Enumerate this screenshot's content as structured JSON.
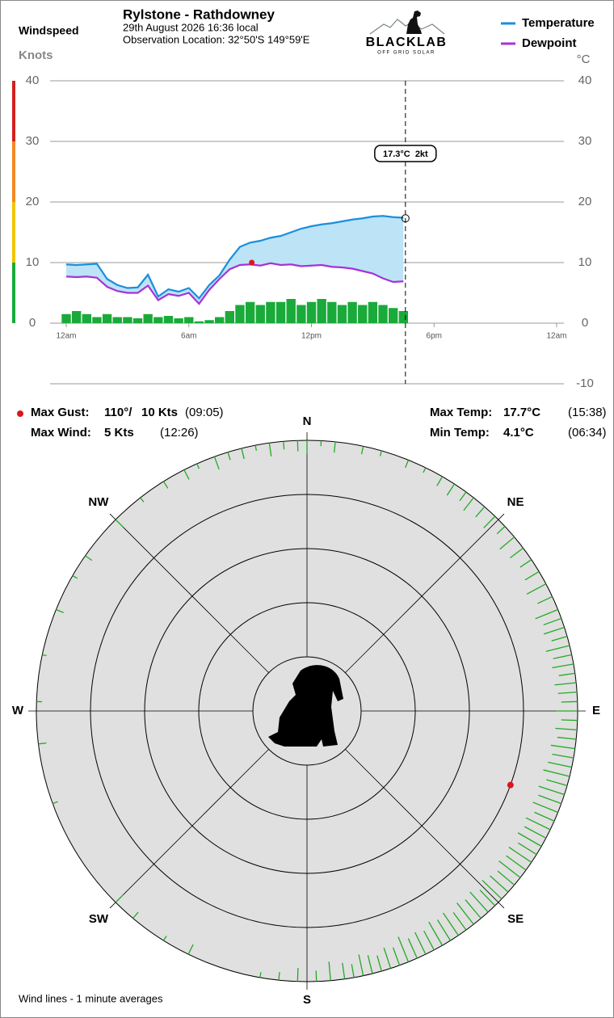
{
  "header": {
    "title": "Rylstone - Rathdowney",
    "date": "29th August 2026  16:36 local",
    "location": "Observation Location: 32°50'S 149°59'E"
  },
  "logo": {
    "name": "BLACKLAB",
    "tagline": "OFF GRID SOLAR"
  },
  "chart_data": [
    {
      "type": "line",
      "y_axis_label": "Windspeed",
      "y_axis_unit": "Knots",
      "y2_axis_label": "°C",
      "x": [
        0,
        0.5,
        1,
        1.5,
        2,
        2.5,
        3,
        3.5,
        4,
        4.5,
        5,
        5.5,
        6,
        6.5,
        7,
        7.5,
        8,
        8.5,
        9,
        9.5,
        10,
        10.5,
        11,
        11.5,
        12,
        12.5,
        13,
        13.5,
        14,
        14.5,
        15,
        15.5,
        16,
        16.5
      ],
      "xlim": [
        0,
        24
      ],
      "xticks": [
        {
          "value": 0,
          "label": "12am"
        },
        {
          "value": 6,
          "label": "6am"
        },
        {
          "value": 12,
          "label": "12pm"
        },
        {
          "value": 18,
          "label": "6pm"
        },
        {
          "value": 24,
          "label": "12am"
        }
      ],
      "ylim": [
        0,
        40
      ],
      "yticks": [
        0,
        10,
        20,
        30,
        40
      ],
      "y2lim": [
        -10,
        40
      ],
      "y2ticks": [
        -10,
        0,
        10,
        20,
        30,
        40
      ],
      "grid": true,
      "legend": "top-right",
      "speed_band_colors": [
        "#1aaa3a",
        "#f2c500",
        "#f08a24",
        "#d42020"
      ],
      "fill_color": "#bde3f7",
      "series": [
        {
          "name": "Temperature",
          "color": "#1a8fdc",
          "axis": "y2",
          "values": [
            9.7,
            9.6,
            9.7,
            9.8,
            7.3,
            6.3,
            5.8,
            5.9,
            8.0,
            4.4,
            5.6,
            5.2,
            5.8,
            4.1,
            6.3,
            7.9,
            10.5,
            12.6,
            13.3,
            13.6,
            14.1,
            14.4,
            15.0,
            15.6,
            16.0,
            16.3,
            16.5,
            16.8,
            17.1,
            17.3,
            17.6,
            17.7,
            17.5,
            17.4
          ]
        },
        {
          "name": "Dewpoint",
          "color": "#a533d6",
          "axis": "y2",
          "values": [
            7.7,
            7.6,
            7.7,
            7.5,
            6.0,
            5.3,
            5.0,
            5.0,
            6.2,
            3.8,
            4.8,
            4.5,
            5.0,
            3.2,
            5.5,
            7.3,
            8.9,
            9.6,
            9.7,
            9.5,
            9.9,
            9.6,
            9.7,
            9.4,
            9.5,
            9.6,
            9.3,
            9.2,
            9.0,
            8.6,
            8.2,
            7.4,
            6.8,
            6.9
          ]
        }
      ],
      "wind": {
        "color": "#1aaa3a",
        "values": [
          1.5,
          2,
          1.5,
          1,
          1.5,
          1,
          1,
          0.8,
          1.5,
          1,
          1.2,
          0.8,
          1,
          0.3,
          0.5,
          1,
          2,
          3,
          3.5,
          3,
          3.5,
          3.5,
          4,
          3,
          3.5,
          4,
          3.5,
          3,
          3.5,
          3,
          3.5,
          3,
          2.5,
          2
        ]
      },
      "gust": {
        "x": 9.08,
        "value": 10,
        "color": "#e0141e"
      },
      "cursor": {
        "x": 16.6,
        "value": 17.3,
        "label": "17.3°C  2kt"
      }
    },
    {
      "type": "polar",
      "rlim": [
        0,
        50
      ],
      "rticks": [
        10,
        20,
        30,
        40
      ],
      "thetaticks": [
        {
          "value": 0,
          "label": "N"
        },
        {
          "value": 45,
          "label": "NE"
        },
        {
          "value": 90,
          "label": "E"
        },
        {
          "value": 135,
          "label": "SE"
        },
        {
          "value": 180,
          "label": "S"
        },
        {
          "value": 225,
          "label": "SW"
        },
        {
          "value": 270,
          "label": "W"
        },
        {
          "value": 315,
          "label": "NW"
        }
      ],
      "series": [
        {
          "color": "#22aa22",
          "theta": [
            300,
            305,
            315,
            322,
            328,
            333,
            336,
            340,
            343,
            346,
            349,
            352,
            355,
            358,
            0,
            3,
            6,
            12,
            16,
            22,
            26,
            30,
            33,
            36,
            38,
            41,
            44,
            47,
            50,
            53,
            56,
            59,
            62,
            65,
            68,
            70,
            72,
            74,
            76,
            78,
            80,
            82,
            84,
            86,
            88,
            90,
            92,
            94,
            96,
            98,
            100,
            102,
            104,
            106,
            108,
            110,
            112,
            114,
            116,
            118,
            120,
            122,
            124,
            126,
            128,
            130,
            132,
            134,
            136,
            138,
            140,
            142,
            144,
            146,
            148,
            150,
            152,
            154,
            156,
            158,
            160,
            162,
            164,
            166,
            168,
            170,
            172,
            175,
            178,
            182,
            186,
            190,
            206,
            212,
            220,
            225,
            250,
            263,
            272,
            282,
            292
          ],
          "values": [
            1,
            1.5,
            2,
            1,
            1.5,
            2,
            1,
            2.5,
            1.5,
            2,
            1,
            2.5,
            1.5,
            2,
            2.5,
            1,
            2,
            1.5,
            1,
            1.5,
            1,
            2,
            2.5,
            2,
            3,
            2.5,
            3,
            2,
            3.5,
            3,
            2.5,
            3,
            4,
            3,
            4.5,
            3.5,
            4,
            3,
            4.5,
            3.5,
            4,
            3,
            4,
            3.5,
            3,
            4,
            3,
            4,
            3.5,
            4.5,
            4,
            4.5,
            5,
            4,
            5,
            4.5,
            5,
            4,
            5,
            4.5,
            5,
            4,
            5,
            4.5,
            5,
            4,
            4.5,
            5,
            4,
            5,
            4.5,
            5,
            4,
            5,
            4.5,
            5,
            4,
            4.5,
            4,
            5,
            3.5,
            4,
            3,
            3.5,
            4,
            2.5,
            3,
            3.5,
            2,
            2.5,
            1.5,
            1,
            2,
            1,
            1.5,
            2,
            1,
            1.5,
            1,
            0.8,
            1.5
          ]
        }
      ],
      "gust": {
        "theta": 110,
        "value": 10,
        "color": "#e0141e"
      },
      "note": "Wind lines - 1 minute averages"
    }
  ],
  "stats": {
    "max_gust": {
      "label": "Max Gust:",
      "direction": "110°/",
      "speed": "10 Kts",
      "time": "(09:05)"
    },
    "max_wind": {
      "label": "Max Wind:",
      "speed": "5 Kts",
      "time": "(12:26)"
    },
    "max_temp": {
      "label": "Max Temp:",
      "value": "17.7°C",
      "time": "(15:38)"
    },
    "min_temp": {
      "label": "Min Temp:",
      "value": "4.1°C",
      "time": "(06:34)"
    }
  }
}
